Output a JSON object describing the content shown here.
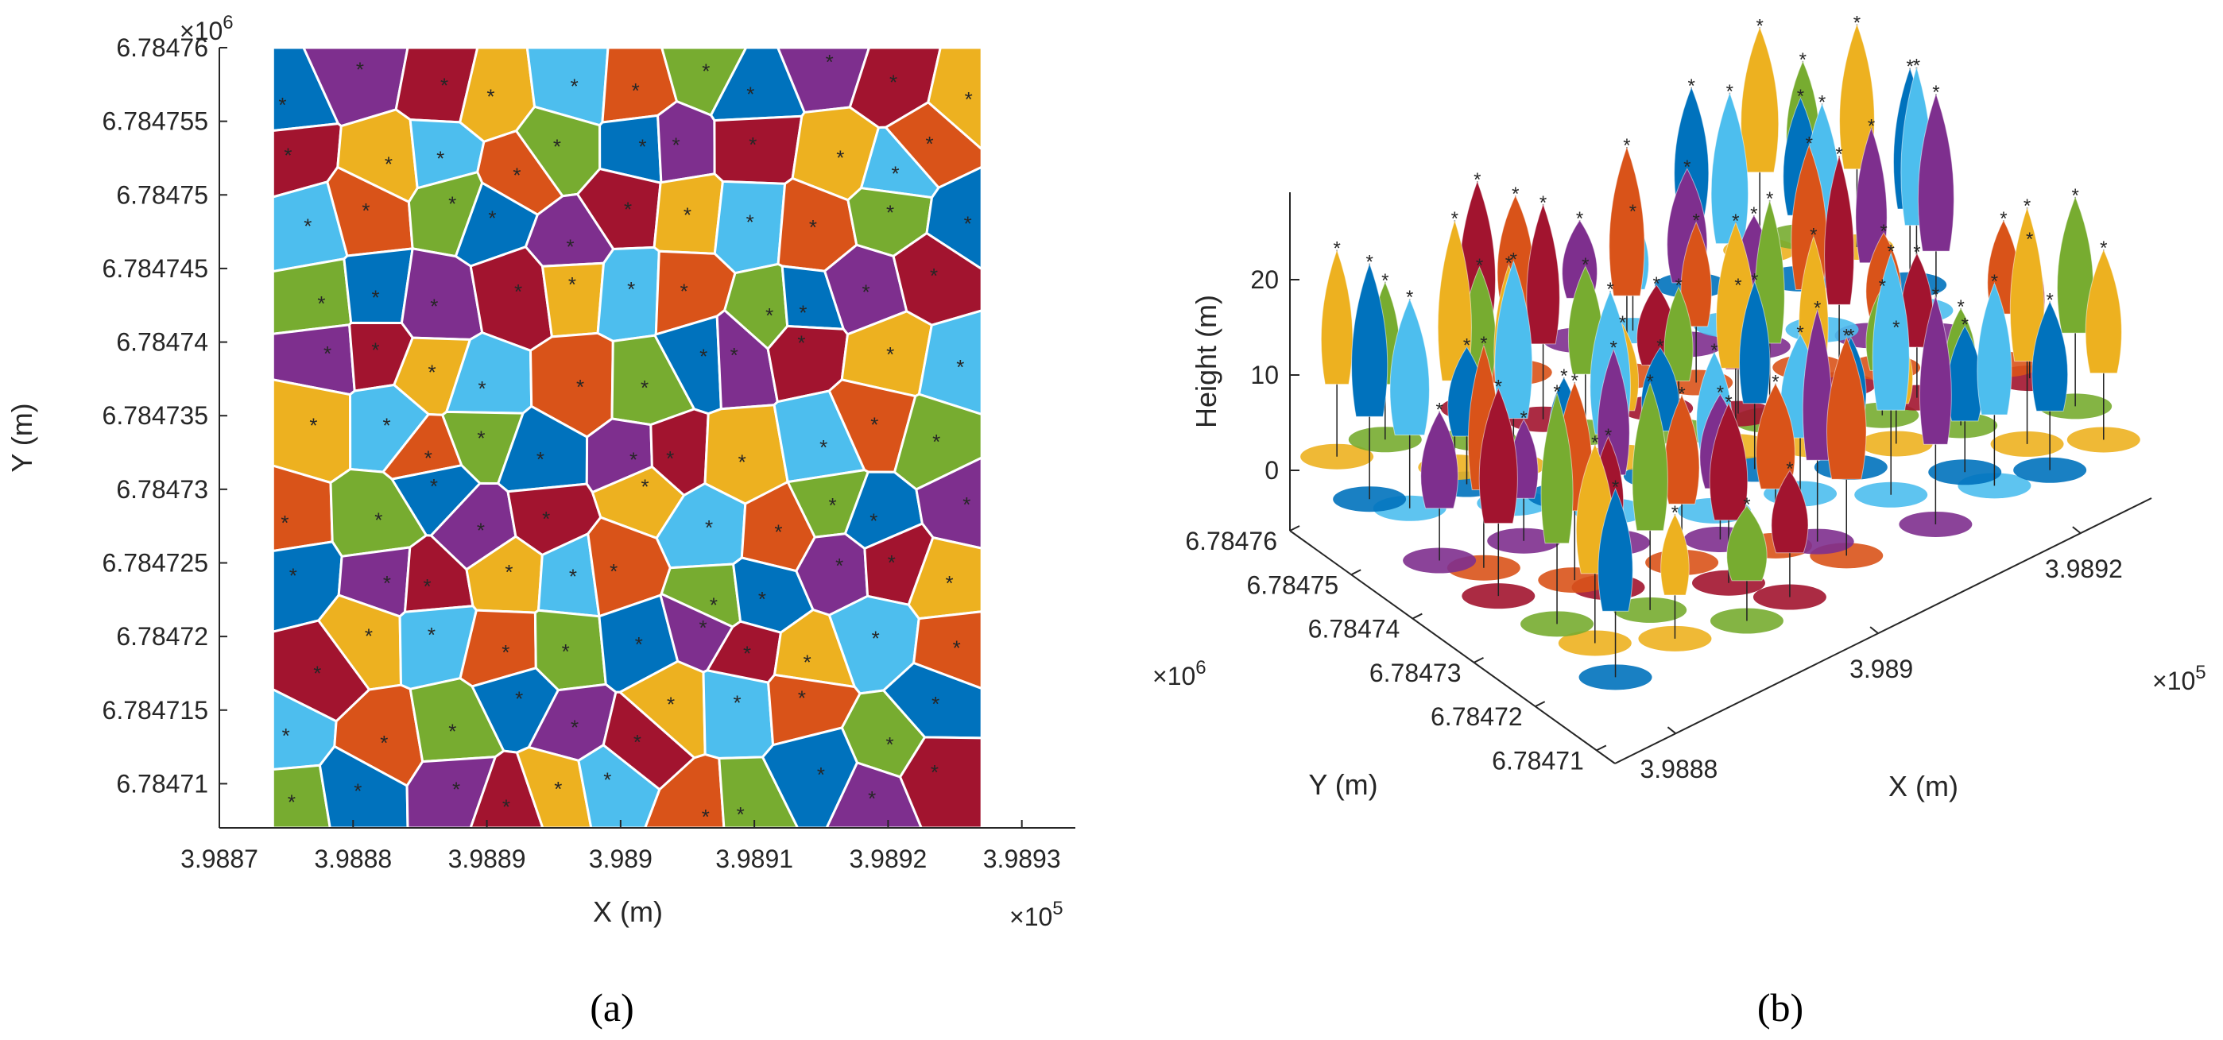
{
  "colors": {
    "blue": "#0072BD",
    "orange": "#D95319",
    "yellow": "#EDB120",
    "purple": "#7E2F8E",
    "green": "#77AC30",
    "lightblue": "#4DBEEE",
    "darkred": "#A2142F"
  },
  "chart_data": [
    {
      "type": "scatter",
      "panel_label": "(a)",
      "title": "",
      "xlabel": "X (m)",
      "ylabel": "Y (m)",
      "x_exponent": "×10",
      "x_exponent_power": "5",
      "y_exponent": "×10",
      "y_exponent_power": "6",
      "xlim": [
        398870,
        398934
      ],
      "ylim": [
        6784707,
        6784760
      ],
      "x_ticks": [
        398870,
        398880,
        398890,
        398900,
        398910,
        398920,
        398930
      ],
      "x_tick_labels": [
        "3.9887",
        "3.9888",
        "3.9889",
        "3.989",
        "3.9891",
        "3.9892",
        "3.9893"
      ],
      "y_ticks": [
        6784710,
        6784715,
        6784720,
        6784725,
        6784730,
        6784735,
        6784740,
        6784745,
        6784750,
        6784755,
        6784760
      ],
      "y_tick_labels": [
        "6.78471",
        "6.784715",
        "6.78472",
        "6.784725",
        "6.78473",
        "6.784735",
        "6.78474",
        "6.784745",
        "6.78475",
        "6.784755",
        "6.78476"
      ],
      "data_extent_x": [
        398874,
        398927
      ],
      "data_extent_y": [
        6784707,
        6784760
      ],
      "description_series": "segmented tree crowns (colored point clusters) with treetop markers (*)",
      "grid": false
    },
    {
      "type": "scatter3d",
      "panel_label": "(b)",
      "title": "",
      "xlabel": "X (m)",
      "ylabel": "Y (m)",
      "zlabel": "Height (m)",
      "x_exponent": "×10",
      "x_exponent_power": "5",
      "y_exponent": "×10",
      "y_exponent_power": "6",
      "xlim": [
        398874,
        398927
      ],
      "ylim": [
        6784707,
        6784760
      ],
      "zlim": [
        -5,
        28
      ],
      "x_ticks": [
        398880,
        398900,
        398920
      ],
      "x_tick_labels": [
        "3.9888",
        "3.989",
        "3.9892"
      ],
      "y_ticks": [
        6784710,
        6784720,
        6784730,
        6784740,
        6784750,
        6784760
      ],
      "y_tick_labels": [
        "6.78471",
        "6.78472",
        "6.78473",
        "6.78474",
        "6.78475",
        "6.78476"
      ],
      "z_ticks": [
        0,
        10,
        20
      ],
      "z_tick_labels": [
        "0",
        "10",
        "20"
      ],
      "description_series": "3D tree point clouds colored by segment with treetop markers (*) and stems",
      "grid": false
    }
  ]
}
